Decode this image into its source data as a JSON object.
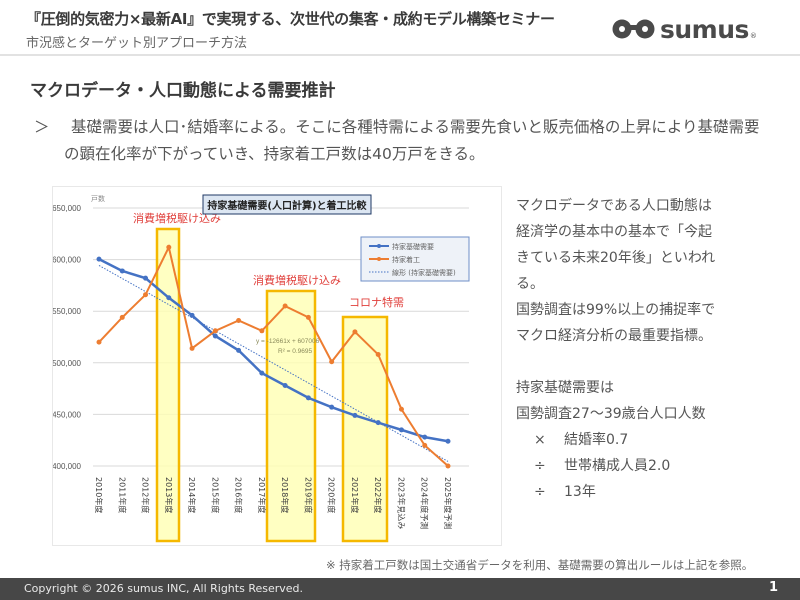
{
  "header": {
    "title": "『圧倒的気密力×最新AI』で実現する、次世代の集客・成約モデル構築セミナー",
    "subtitle": "市況感とターゲット別アプローチ方法",
    "logo_text": "sumus",
    "logo_reg": "®"
  },
  "section": {
    "title": "マクロデータ・人口動態による需要推計",
    "lead_marker": "＞",
    "lead_text": "基礎需要は人口･結婚率による。そこに各種特需による需要先食いと販売価格の上昇により基礎需要の顕在化率が下がっていき、持家着工戸数は40万戸をきる。"
  },
  "side_panel": {
    "para1": [
      "マクロデータである人口動態は",
      "経済学の基本中の基本で「今起",
      "きている未来20年後」といわれ",
      "る。",
      "国勢調査は99%以上の捕捉率で",
      "マクロ経済分析の最重要指標。"
    ],
    "formula_title": "持家基礎需要は",
    "formula_base": "国勢調査27～39歳台人口人数",
    "formula_steps": [
      {
        "op": "×",
        "text": "結婚率0.7"
      },
      {
        "op": "÷",
        "text": "世帯構成人員2.0"
      },
      {
        "op": "÷",
        "text": "13年"
      }
    ]
  },
  "note": "※ 持家着工戸数は国土交通省データを利用、基礎需要の算出ルールは上記を参照。",
  "footer": {
    "copyright": "Copyright © 2026 sumus INC, All Rights Reserved.",
    "page": "1"
  },
  "colors": {
    "demand": "#4472c4",
    "starts": "#ed7d31",
    "trend": "#4472c4",
    "highlight_fill": "#ffffb3",
    "highlight_border": "#f5b800",
    "annotation": "#e0403c",
    "footer_bg": "#474747"
  },
  "chart_data": {
    "type": "line",
    "title": "持家基礎需要(人口計算)と着工比較",
    "ylabel": "戸数",
    "xlabel": "",
    "ylim": [
      400000,
      650000
    ],
    "yticks": [
      "400,000",
      "450,000",
      "500,000",
      "550,000",
      "600,000",
      "650,000"
    ],
    "grid": true,
    "legend_position": "upper-right",
    "categories": [
      "2010年度",
      "2011年度",
      "2012年度",
      "2013年度",
      "2014年度",
      "2015年度",
      "2016年度",
      "2017年度",
      "2018年度",
      "2019年度",
      "2020年度",
      "2021年度",
      "2022年度",
      "2023年見込み",
      "2024年度予測",
      "2025年度予測"
    ],
    "series": [
      {
        "name": "持家基礎需要",
        "values": [
          600500,
          589000,
          582000,
          563000,
          546000,
          526000,
          512000,
          490000,
          478000,
          466000,
          457000,
          449000,
          442000,
          435000,
          428000,
          424000
        ]
      },
      {
        "name": "持家着工",
        "values": [
          520000,
          544000,
          566000,
          612000,
          514000,
          531000,
          541000,
          531000,
          555000,
          544000,
          501000,
          530000,
          508000,
          455000,
          420000,
          400000
        ]
      }
    ],
    "trendline": {
      "name": "線形 (持家基礎需要)",
      "equation": "y = -12661x + 607006",
      "r2": "R² = 0.9695",
      "slope": -12661,
      "intercept": 607006
    },
    "annotations": [
      {
        "text": "消費増税駆け込み",
        "from": 3,
        "to": 3
      },
      {
        "text": "消費増税駆け込み",
        "from": 8,
        "to": 9
      },
      {
        "text": "コロナ特需",
        "from": 11,
        "to": 12
      }
    ]
  }
}
